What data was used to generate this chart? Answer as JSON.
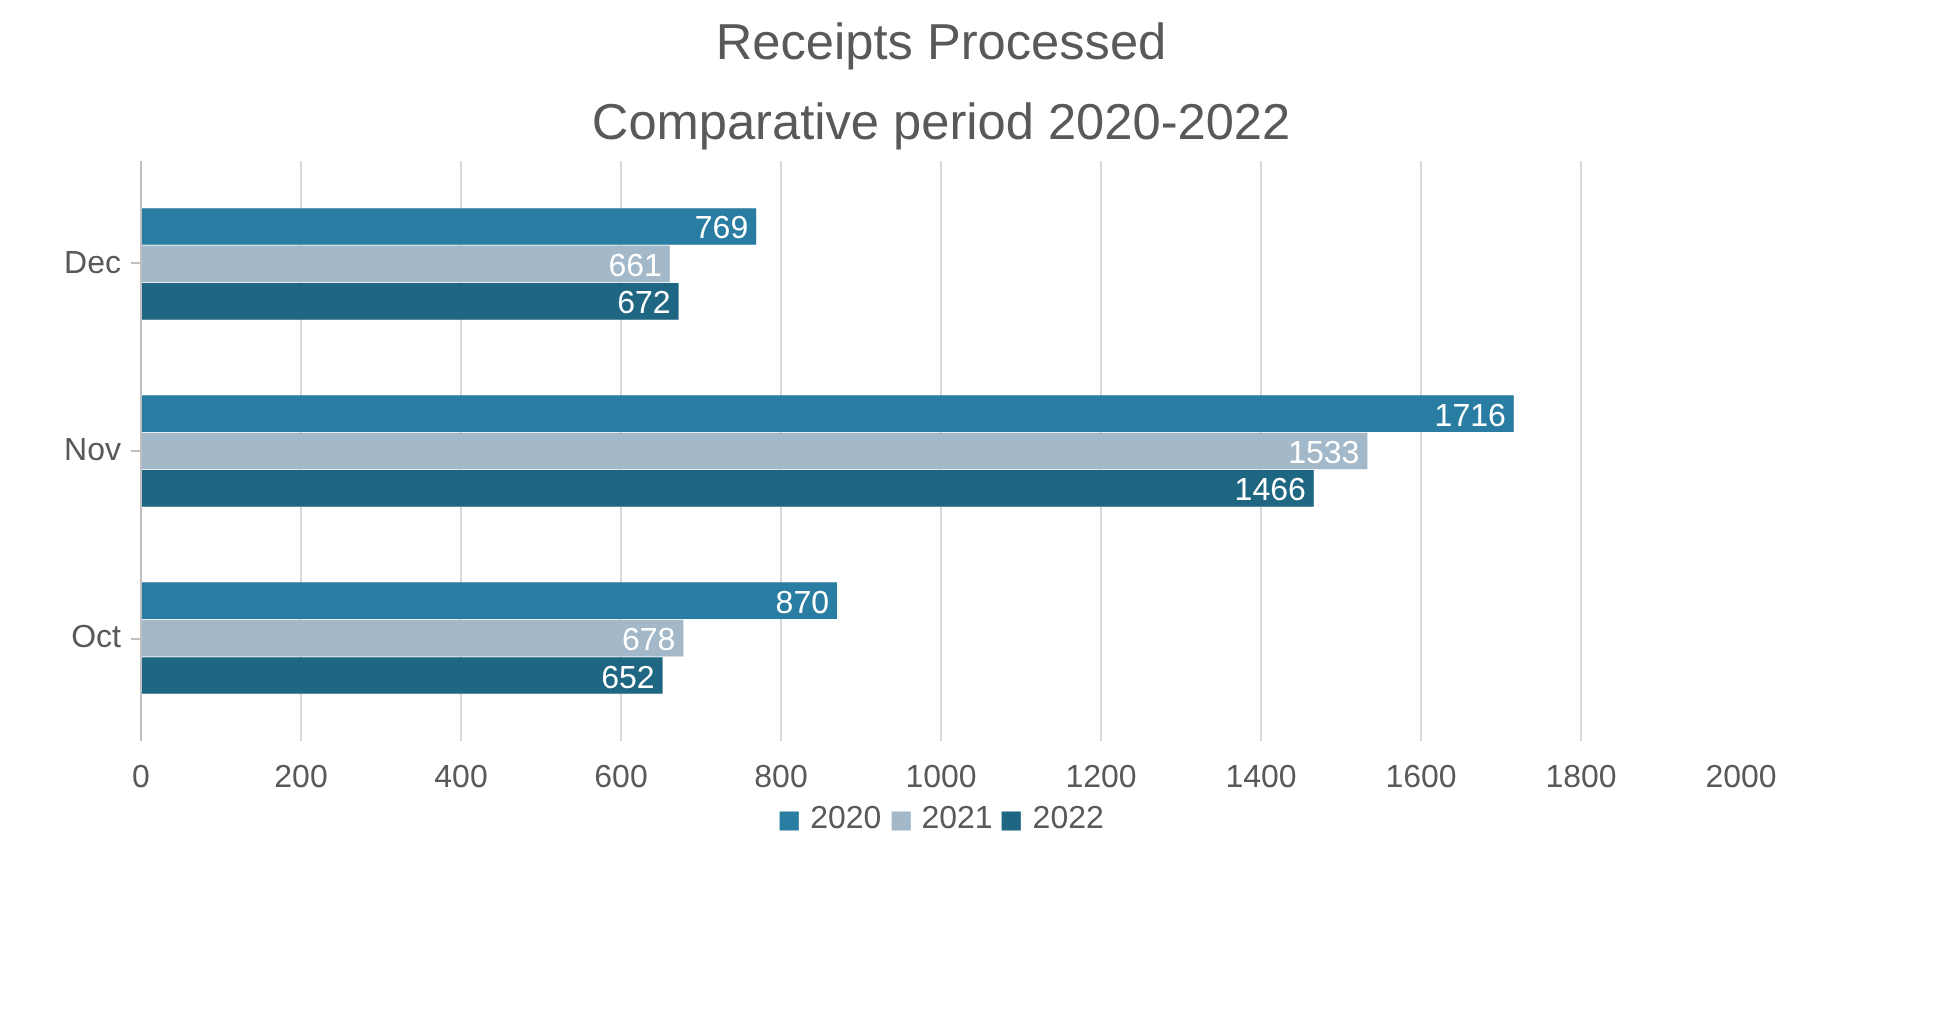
{
  "chart_data": {
    "type": "bar",
    "orientation": "horizontal",
    "title": "Receipts Processed",
    "subtitle": "Comparative period 2020-2022",
    "categories": [
      "Dec",
      "Nov",
      "Oct"
    ],
    "series": [
      {
        "name": "2020",
        "color": "#2a7da2",
        "values": [
          769,
          1716,
          870
        ]
      },
      {
        "name": "2021",
        "color": "#a3b8c9",
        "values": [
          661,
          1533,
          678
        ]
      },
      {
        "name": "2022",
        "color": "#1f6682",
        "values": [
          672,
          1466,
          652
        ]
      }
    ],
    "xlim": [
      0,
      2000
    ],
    "xticks": [
      0,
      200,
      400,
      600,
      800,
      1000,
      1200,
      1400,
      1600,
      1800,
      2000
    ],
    "grid": "x",
    "legend": "bottom",
    "data_labels": true
  }
}
